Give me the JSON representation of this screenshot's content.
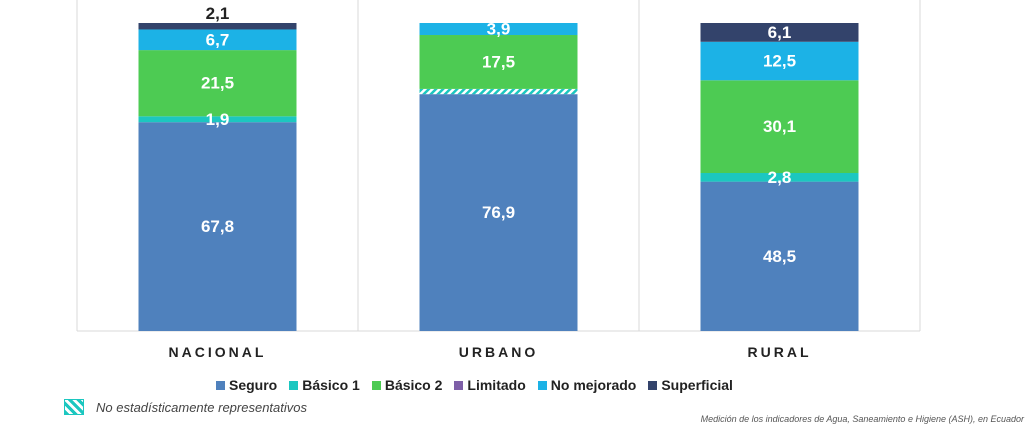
{
  "chart_data": {
    "type": "bar",
    "stacked": true,
    "categories": [
      "NACIONAL",
      "URBANO",
      "RURAL"
    ],
    "ylim": [
      0,
      100
    ],
    "grid": false,
    "series": [
      {
        "name": "Seguro",
        "color": "#4F81BD",
        "values": [
          67.8,
          76.9,
          48.5
        ],
        "labels": [
          "67,8",
          "76,9",
          "48,5"
        ]
      },
      {
        "name": "Básico 1",
        "color": "#1CC7C0",
        "values": [
          1.9,
          1.7,
          2.8
        ],
        "labels": [
          "1,9",
          "",
          "2,8"
        ],
        "pattern_categories": [
          "URBANO"
        ]
      },
      {
        "name": "Básico 2",
        "color": "#4DCB53",
        "values": [
          21.5,
          17.5,
          30.1
        ],
        "labels": [
          "21,5",
          "17,5",
          "30,1"
        ]
      },
      {
        "name": "Limitado",
        "color": "#7E5FA8",
        "values": [
          0,
          0,
          0
        ],
        "labels": [
          "",
          "",
          ""
        ]
      },
      {
        "name": "No mejorado",
        "color": "#1CB2E6",
        "values": [
          6.7,
          3.9,
          12.5
        ],
        "labels": [
          "6,7",
          "3,9",
          "12,5"
        ]
      },
      {
        "name": "Superficial",
        "color": "#33436B",
        "values": [
          2.1,
          0,
          6.1
        ],
        "labels": [
          "2,1",
          "",
          "6,1"
        ],
        "label_outside": [
          true,
          false,
          false
        ]
      }
    ],
    "legend_position": "bottom"
  },
  "footnote": {
    "text": "No estadísticamente representativos",
    "swatch_color": "#1CC7C0"
  },
  "source": "Medición de los indicadores de Agua, Saneamiento e Higiene (ASH), en Ecuador"
}
